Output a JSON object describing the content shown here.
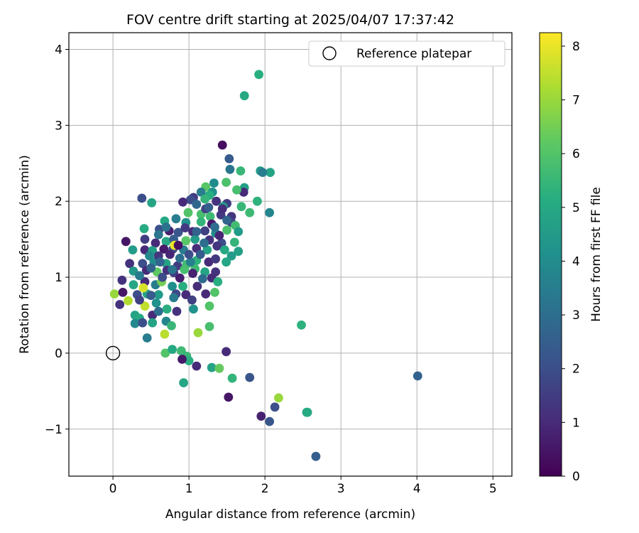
{
  "chart_data": {
    "type": "scatter",
    "title": "FOV centre drift starting at 2025/04/07 17:37:42",
    "xlabel": "Angular distance from reference (arcmin)",
    "ylabel": "Rotation from reference (arcmin)",
    "xlim": [
      -0.58,
      5.25
    ],
    "ylim": [
      -1.62,
      4.22
    ],
    "xticks": [
      0,
      1,
      2,
      3,
      4,
      5
    ],
    "yticks": [
      -1,
      0,
      1,
      2,
      3,
      4
    ],
    "xtick_labels": [
      "0",
      "1",
      "2",
      "3",
      "4",
      "5"
    ],
    "ytick_labels": [
      "−1",
      "0",
      "1",
      "2",
      "3",
      "4"
    ],
    "grid": true,
    "legend": {
      "placement": "top-right",
      "entries": [
        "Reference platepar"
      ]
    },
    "reference_point": {
      "name": "Reference platepar",
      "x": 0,
      "y": 0
    },
    "colorbar": {
      "label": "Hours from first FF file",
      "colormap": "viridis",
      "range": [
        0,
        8.25
      ],
      "ticks": [
        0,
        1,
        2,
        3,
        4,
        5,
        6,
        7,
        8
      ],
      "tick_labels": [
        "0",
        "1",
        "2",
        "3",
        "4",
        "5",
        "6",
        "7",
        "8"
      ]
    },
    "points": [
      [
        1.92,
        3.67,
        5.2
      ],
      [
        1.73,
        3.39,
        5.0
      ],
      [
        1.44,
        2.74,
        0.3
      ],
      [
        1.53,
        2.56,
        2.4
      ],
      [
        1.54,
        2.42,
        3.2
      ],
      [
        1.68,
        2.4,
        5.5
      ],
      [
        1.94,
        2.4,
        4.5
      ],
      [
        2.07,
        2.38,
        4.8
      ],
      [
        1.97,
        2.38,
        3.5
      ],
      [
        1.49,
        2.25,
        5.9
      ],
      [
        1.33,
        2.24,
        4.0
      ],
      [
        1.22,
        2.19,
        6.1
      ],
      [
        1.73,
        2.18,
        4.7
      ],
      [
        1.72,
        2.12,
        1.0
      ],
      [
        1.63,
        2.15,
        5.8
      ],
      [
        1.31,
        2.12,
        4.2
      ],
      [
        1.16,
        2.12,
        3.5
      ],
      [
        1.27,
        2.08,
        5.2
      ],
      [
        1.06,
        2.05,
        1.5
      ],
      [
        1.02,
        2.02,
        2.0
      ],
      [
        1.21,
        2.03,
        5.4
      ],
      [
        0.38,
        2.04,
        2.0
      ],
      [
        0.51,
        1.98,
        4.8
      ],
      [
        0.92,
        1.99,
        1.0
      ],
      [
        1.9,
        2.0,
        5.3
      ],
      [
        1.1,
        1.96,
        2.8
      ],
      [
        1.5,
        1.97,
        1.5
      ],
      [
        1.36,
        2.0,
        1.2
      ],
      [
        1.45,
        1.93,
        4.4
      ],
      [
        1.69,
        1.93,
        5.5
      ],
      [
        1.8,
        1.85,
        5.6
      ],
      [
        2.06,
        1.85,
        3.8
      ],
      [
        0.99,
        1.85,
        6.0
      ],
      [
        1.16,
        1.83,
        5.8
      ],
      [
        1.28,
        1.8,
        5.6
      ],
      [
        1.42,
        1.82,
        1.4
      ],
      [
        1.56,
        1.8,
        1.3
      ],
      [
        1.44,
        1.9,
        1.1
      ],
      [
        1.22,
        1.9,
        1.6
      ],
      [
        0.68,
        1.74,
        5.0
      ],
      [
        0.83,
        1.77,
        3.5
      ],
      [
        0.96,
        1.72,
        4.2
      ],
      [
        1.16,
        1.73,
        5.4
      ],
      [
        1.3,
        1.7,
        0.6
      ],
      [
        1.56,
        1.72,
        1.7
      ],
      [
        1.61,
        1.68,
        5.7
      ],
      [
        0.41,
        1.64,
        5.1
      ],
      [
        0.61,
        1.63,
        2.0
      ],
      [
        0.74,
        1.61,
        0.8
      ],
      [
        0.86,
        1.59,
        2.2
      ],
      [
        1.05,
        1.6,
        1.0
      ],
      [
        1.21,
        1.61,
        1.6
      ],
      [
        1.35,
        1.58,
        4.0
      ],
      [
        1.5,
        1.62,
        5.9
      ],
      [
        1.65,
        1.6,
        4.5
      ],
      [
        0.17,
        1.47,
        0.5
      ],
      [
        0.42,
        1.5,
        1.5
      ],
      [
        0.56,
        1.45,
        1.0
      ],
      [
        0.7,
        1.47,
        5.0
      ],
      [
        0.8,
        1.5,
        2.5
      ],
      [
        0.96,
        1.48,
        6.1
      ],
      [
        1.08,
        1.5,
        4.5
      ],
      [
        1.27,
        1.49,
        1.2
      ],
      [
        1.43,
        1.45,
        2.0
      ],
      [
        1.6,
        1.46,
        5.4
      ],
      [
        0.26,
        1.36,
        4.5
      ],
      [
        0.42,
        1.36,
        1.0
      ],
      [
        0.52,
        1.35,
        4.6
      ],
      [
        0.67,
        1.37,
        0.6
      ],
      [
        0.79,
        1.37,
        1.8
      ],
      [
        0.81,
        1.42,
        8.0
      ],
      [
        0.93,
        1.36,
        3.5
      ],
      [
        1.1,
        1.38,
        1.1
      ],
      [
        1.24,
        1.36,
        4.8
      ],
      [
        1.37,
        1.41,
        1.3
      ],
      [
        1.47,
        1.36,
        5.0
      ],
      [
        1.65,
        1.34,
        4.7
      ],
      [
        1.56,
        1.28,
        4.5
      ],
      [
        0.22,
        1.18,
        1.2
      ],
      [
        0.39,
        1.18,
        2.0
      ],
      [
        0.54,
        1.2,
        4.0
      ],
      [
        0.7,
        1.18,
        4.8
      ],
      [
        0.85,
        1.15,
        1.5
      ],
      [
        0.97,
        1.17,
        5.7
      ],
      [
        1.1,
        1.22,
        5.3
      ],
      [
        1.26,
        1.2,
        1.0
      ],
      [
        1.35,
        1.24,
        1.4
      ],
      [
        1.49,
        1.2,
        4.9
      ],
      [
        0.27,
        1.08,
        4.4
      ],
      [
        0.44,
        1.09,
        1.0
      ],
      [
        0.58,
        1.07,
        6.2
      ],
      [
        0.71,
        1.09,
        1.2
      ],
      [
        0.8,
        1.06,
        1.5
      ],
      [
        0.94,
        1.1,
        5.8
      ],
      [
        1.08,
        1.11,
        5.6
      ],
      [
        1.21,
        1.07,
        4.8
      ],
      [
        1.35,
        1.07,
        1.2
      ],
      [
        1.3,
        0.99,
        1.0
      ],
      [
        0.12,
        0.96,
        1.2
      ],
      [
        0.27,
        0.9,
        4.9
      ],
      [
        0.42,
        0.94,
        1.0
      ],
      [
        0.56,
        0.9,
        3.5
      ],
      [
        0.64,
        0.94,
        6.5
      ],
      [
        0.78,
        0.88,
        4.1
      ],
      [
        0.92,
        0.88,
        5.2
      ],
      [
        1.11,
        0.88,
        1.1
      ],
      [
        1.38,
        0.94,
        5.2
      ],
      [
        0.02,
        0.78,
        7.0
      ],
      [
        0.13,
        0.8,
        0.5
      ],
      [
        0.32,
        0.77,
        2.0
      ],
      [
        0.45,
        0.78,
        4.8
      ],
      [
        0.6,
        0.77,
        4.5
      ],
      [
        0.83,
        0.78,
        1.8
      ],
      [
        0.96,
        0.77,
        1.0
      ],
      [
        1.22,
        0.78,
        1.0
      ],
      [
        1.34,
        0.8,
        6.0
      ],
      [
        0.09,
        0.64,
        1.2
      ],
      [
        0.2,
        0.69,
        7.3
      ],
      [
        0.42,
        0.62,
        7.5
      ],
      [
        0.57,
        0.66,
        4.2
      ],
      [
        0.71,
        0.58,
        5.2
      ],
      [
        0.84,
        0.55,
        1.2
      ],
      [
        1.04,
        0.7,
        1.6
      ],
      [
        1.06,
        0.58,
        4.2
      ],
      [
        1.27,
        0.62,
        6.0
      ],
      [
        0.29,
        0.5,
        4.8
      ],
      [
        0.35,
        0.46,
        5.0
      ],
      [
        0.52,
        0.5,
        1.0
      ],
      [
        0.7,
        0.42,
        3.8
      ],
      [
        0.29,
        0.39,
        3.9
      ],
      [
        0.39,
        0.4,
        2.0
      ],
      [
        0.52,
        0.4,
        4.8
      ],
      [
        0.77,
        0.36,
        5.5
      ],
      [
        0.45,
        0.2,
        3.5
      ],
      [
        0.68,
        0.25,
        7.4
      ],
      [
        1.12,
        0.27,
        7.0
      ],
      [
        1.27,
        0.35,
        5.8
      ],
      [
        2.48,
        0.37,
        5.3
      ],
      [
        0.69,
        0.0,
        6.0
      ],
      [
        0.78,
        0.05,
        5.0
      ],
      [
        0.9,
        0.03,
        5.6
      ],
      [
        0.97,
        -0.04,
        5.5
      ],
      [
        1.0,
        -0.1,
        5.2
      ],
      [
        0.91,
        -0.08,
        0.6
      ],
      [
        1.1,
        -0.17,
        1.0
      ],
      [
        1.3,
        -0.19,
        4.8
      ],
      [
        1.4,
        -0.2,
        6.3
      ],
      [
        1.49,
        0.02,
        1.0
      ],
      [
        0.93,
        -0.39,
        4.9
      ],
      [
        1.57,
        -0.33,
        5.4
      ],
      [
        1.8,
        -0.32,
        2.2
      ],
      [
        4.01,
        -0.3,
        2.6
      ],
      [
        1.52,
        -0.58,
        0.5
      ],
      [
        2.18,
        -0.59,
        7.0
      ],
      [
        2.13,
        -0.71,
        2.0
      ],
      [
        1.95,
        -0.83,
        0.8
      ],
      [
        2.55,
        -0.78,
        4.8
      ],
      [
        2.56,
        -0.78,
        5.1
      ],
      [
        2.06,
        -0.9,
        2.2
      ],
      [
        2.67,
        -1.36,
        2.5
      ],
      [
        0.6,
        1.28,
        1.3
      ],
      [
        0.88,
        1.25,
        3.0
      ],
      [
        1.15,
        1.3,
        2.4
      ],
      [
        0.75,
        1.3,
        0.9
      ],
      [
        1.02,
        1.2,
        3.6
      ],
      [
        0.5,
        1.12,
        2.6
      ],
      [
        0.65,
        1.0,
        1.9
      ],
      [
        0.35,
        1.02,
        3.4
      ],
      [
        0.88,
        0.99,
        0.7
      ],
      [
        1.18,
        0.98,
        2.9
      ],
      [
        0.6,
        1.56,
        3.3
      ],
      [
        1.1,
        1.6,
        2.6
      ],
      [
        1.34,
        1.66,
        3.0
      ],
      [
        1.4,
        1.55,
        0.9
      ],
      [
        1.5,
        1.75,
        2.7
      ],
      [
        0.95,
        1.65,
        1.4
      ],
      [
        0.7,
        1.66,
        3.1
      ],
      [
        1.26,
        1.92,
        2.5
      ],
      [
        0.86,
        1.42,
        0.4
      ],
      [
        0.48,
        1.28,
        3.9
      ],
      [
        1.0,
        1.3,
        2.0
      ],
      [
        1.2,
        1.45,
        3.0
      ],
      [
        0.62,
        1.2,
        2.7
      ],
      [
        0.78,
        1.1,
        3.2
      ],
      [
        1.05,
        1.05,
        0.8
      ],
      [
        0.4,
        0.86,
        7.8
      ],
      [
        0.35,
        0.7,
        1.6
      ],
      [
        0.6,
        0.55,
        3.0
      ],
      [
        0.8,
        0.73,
        3.4
      ],
      [
        0.5,
        0.76,
        2.4
      ]
    ]
  }
}
